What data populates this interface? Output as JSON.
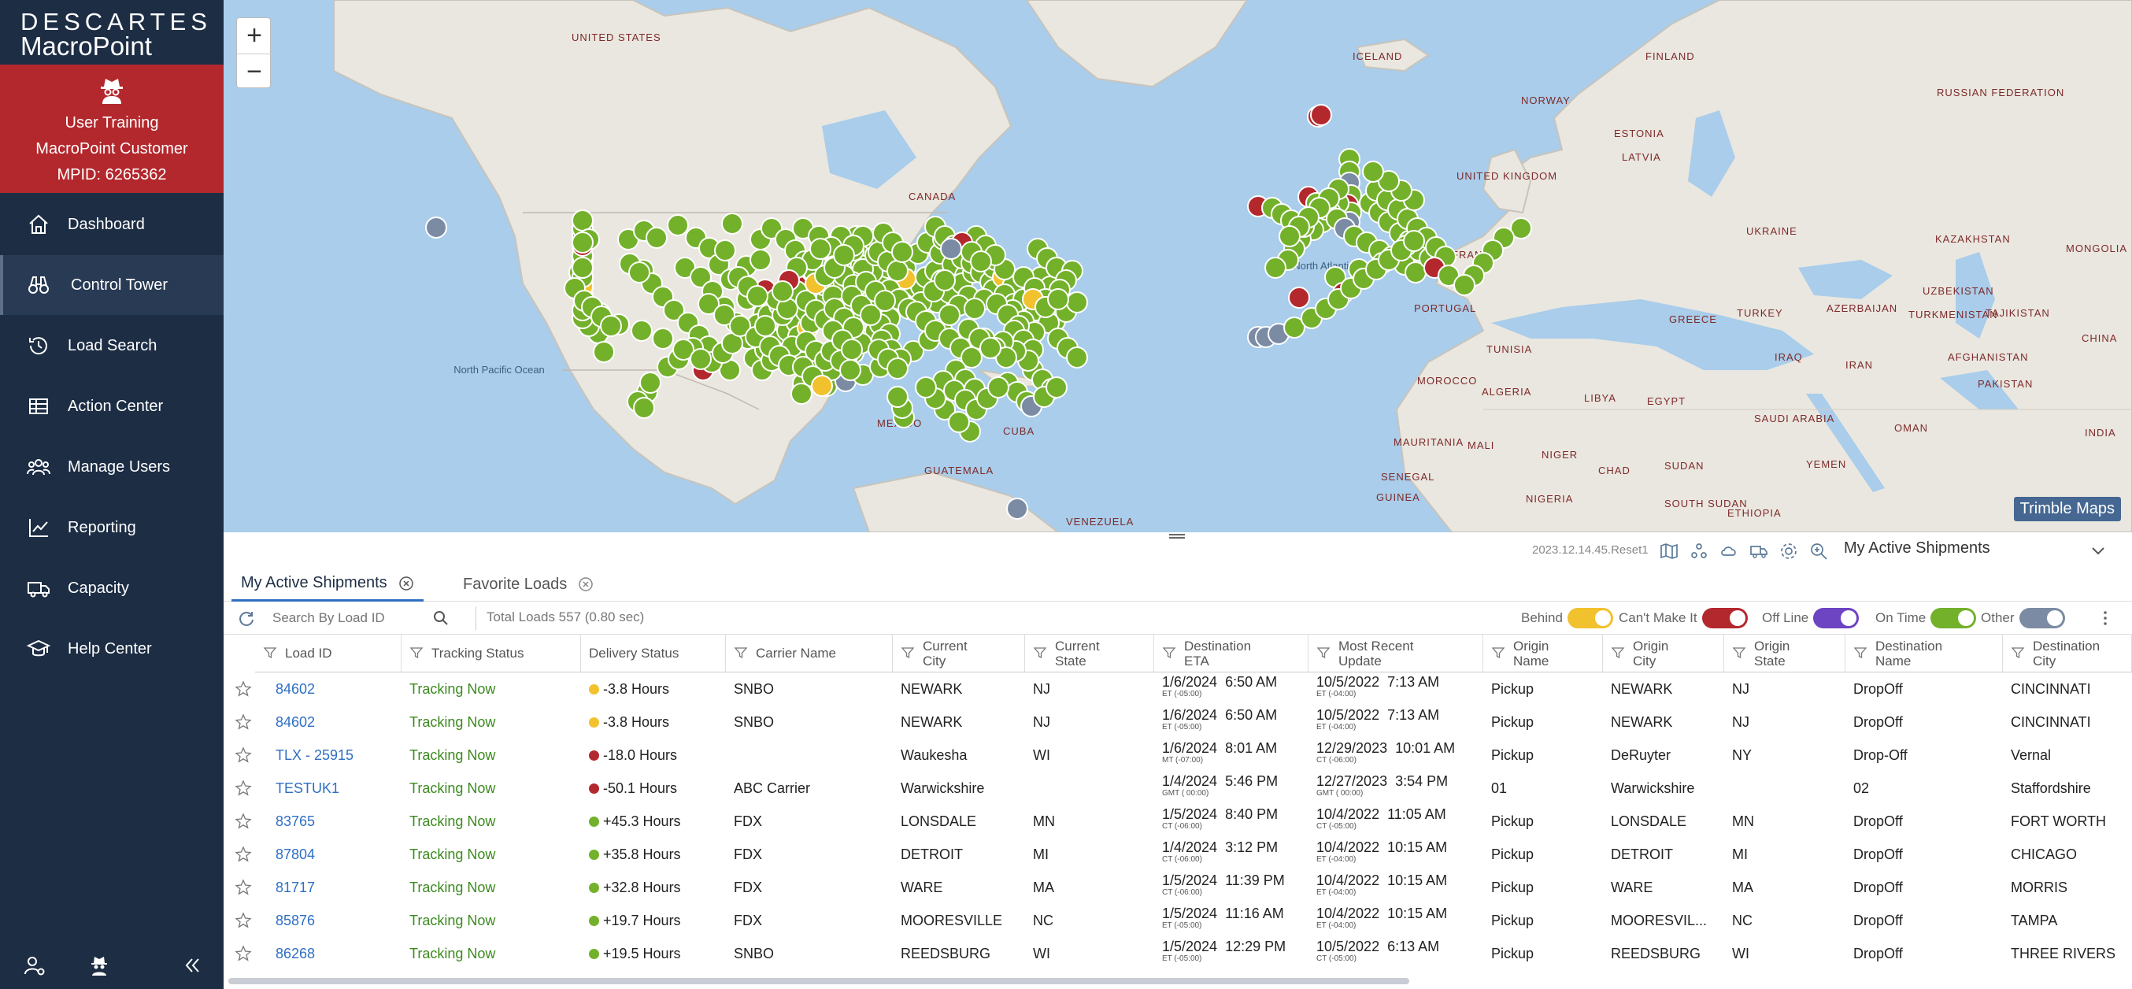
{
  "brand": {
    "name": "DESCARTES",
    "product": "MacroPoint"
  },
  "user": {
    "name": "User Training",
    "company": "MacroPoint Customer",
    "mpid": "MPID: 6265362"
  },
  "nav": [
    {
      "label": "Dashboard",
      "icon": "home-icon"
    },
    {
      "label": "Control Tower",
      "icon": "binoculars-icon",
      "active": true
    },
    {
      "label": "Load Search",
      "icon": "history-icon"
    },
    {
      "label": "Action Center",
      "icon": "table-icon"
    },
    {
      "label": "Manage Users",
      "icon": "users-icon"
    },
    {
      "label": "Reporting",
      "icon": "chart-line-icon"
    },
    {
      "label": "Capacity",
      "icon": "truck-icon"
    },
    {
      "label": "Help Center",
      "icon": "graduation-cap-icon"
    }
  ],
  "map": {
    "labels": {
      "united_states": "UNITED STATES",
      "canada": "CANADA",
      "mexico": "MEXICO",
      "cuba": "CUBA",
      "guatemala": "GUATEMALA",
      "venezuela": "VENEZUELA",
      "iceland": "ICELAND",
      "norway": "NORWAY",
      "finland": "FINLAND",
      "russian_federation": "RUSSIAN FEDERATION",
      "estonia": "ESTONIA",
      "latvia": "LATVIA",
      "united_kingdom": "UNITED KINGDOM",
      "france": "FRANCE",
      "portugal": "PORTUGAL",
      "kazakhstan": "KAZAKHSTAN",
      "mongolia": "MONGOLIA",
      "uzbekistan": "UZBEKISTAN",
      "turkmenistan": "TURKMENISTAN",
      "tajikistan": "TAJIKISTAN",
      "azerbaijan": "AZERBAIJAN",
      "turkey": "TURKEY",
      "greece": "GREECE",
      "tunisia": "TUNISIA",
      "morocco": "MOROCCO",
      "algeria": "ALGERIA",
      "libya": "LIBYA",
      "egypt": "EGYPT",
      "iraq": "IRAQ",
      "iran": "IRAN",
      "afghanistan": "AFGHANISTAN",
      "china": "CHINA",
      "saudi_arabia": "SAUDI ARABIA",
      "mauritania": "MAURITANIA",
      "mali": "MALI",
      "niger": "NIGER",
      "chad": "CHAD",
      "sudan": "SUDAN",
      "senegal": "SENEGAL",
      "guinea": "GUINEA",
      "nigeria": "NIGERIA",
      "south_sudan": "SOUTH SUDAN",
      "ethiopia": "ETHIOPIA",
      "oman": "OMAN",
      "yemen": "YEMEN",
      "pakistan": "PAKISTAN",
      "india": "INDIA",
      "ukraine": "UKRAINE"
    },
    "oceans": {
      "north_pacific": "North Pacific Ocean",
      "north_atlantic": "North Atlantic Ocean"
    },
    "attribution": "Trimble Maps",
    "marker_colors": {
      "on_time": "#73b12b",
      "behind": "#f2c12e",
      "cant_make_it": "#b3282d",
      "off_line": "#6d44c2",
      "other": "#7b8ba3"
    }
  },
  "infobar": {
    "version": "2023.12.14.45.Reset1",
    "view": "My Active Shipments"
  },
  "tabs": [
    {
      "label": "My Active Shipments",
      "active": true
    },
    {
      "label": "Favorite Loads",
      "active": false
    }
  ],
  "toolbar": {
    "search_placeholder": "Search By Load ID",
    "total": "Total Loads 557 (0.80 sec)",
    "legend": [
      {
        "label": "Behind",
        "color": "#f2c12e"
      },
      {
        "label": "Can't Make It",
        "color": "#b3282d"
      },
      {
        "label": "Off Line",
        "color": "#6d44c2"
      },
      {
        "label": "On Time",
        "color": "#73b12b"
      },
      {
        "label": "Other",
        "color": "#7b8ba3"
      }
    ]
  },
  "columns": [
    "Load ID",
    "Tracking Status",
    "Delivery Status",
    "Carrier Name",
    "Current City",
    "Current State",
    "Destination ETA",
    "Most Recent Update",
    "Origin Name",
    "Origin City",
    "Origin State",
    "Destination Name",
    "Destination City"
  ],
  "rows": [
    {
      "load_id": "84602",
      "tracking": "Tracking Now",
      "dot": "#f2c12e",
      "delivery": "-3.8 Hours",
      "carrier": "SNBO",
      "city": "NEWARK",
      "state": "NJ",
      "eta": "1/6/2024  6:50 AM",
      "eta_tz": "ET (-05:00)",
      "update": "10/5/2022  7:13 AM",
      "update_tz": "ET (-04:00)",
      "origin_name": "Pickup",
      "origin_city": "NEWARK",
      "origin_state": "NJ",
      "dest_name": "DropOff",
      "dest_city": "CINCINNATI"
    },
    {
      "load_id": "84602",
      "tracking": "Tracking Now",
      "dot": "#f2c12e",
      "delivery": "-3.8 Hours",
      "carrier": "SNBO",
      "city": "NEWARK",
      "state": "NJ",
      "eta": "1/6/2024  6:50 AM",
      "eta_tz": "ET (-05:00)",
      "update": "10/5/2022  7:13 AM",
      "update_tz": "ET (-04:00)",
      "origin_name": "Pickup",
      "origin_city": "NEWARK",
      "origin_state": "NJ",
      "dest_name": "DropOff",
      "dest_city": "CINCINNATI"
    },
    {
      "load_id": "TLX - 25915",
      "tracking": "Tracking Now",
      "dot": "#b3282d",
      "delivery": "-18.0 Hours",
      "carrier": "",
      "city": "Waukesha",
      "state": "WI",
      "eta": "1/6/2024  8:01 AM",
      "eta_tz": "MT (-07:00)",
      "update": "12/29/2023  10:01 AM",
      "update_tz": "CT (-06:00)",
      "origin_name": "Pickup",
      "origin_city": "DeRuyter",
      "origin_state": "NY",
      "dest_name": "Drop-Off",
      "dest_city": "Vernal"
    },
    {
      "load_id": "TESTUK1",
      "tracking": "Tracking Now",
      "dot": "#b3282d",
      "delivery": "-50.1 Hours",
      "carrier": "ABC Carrier",
      "city": "Warwickshire",
      "state": "",
      "eta": "1/4/2024  5:46 PM",
      "eta_tz": "GMT ( 00:00)",
      "update": "12/27/2023  3:54 PM",
      "update_tz": "GMT ( 00:00)",
      "origin_name": "01",
      "origin_city": "Warwickshire",
      "origin_state": "",
      "dest_name": "02",
      "dest_city": "Staffordshire"
    },
    {
      "load_id": "83765",
      "tracking": "Tracking Now",
      "dot": "#73b12b",
      "delivery": "+45.3 Hours",
      "carrier": "FDX",
      "city": "LONSDALE",
      "state": "MN",
      "eta": "1/5/2024  8:40 PM",
      "eta_tz": "CT (-06:00)",
      "update": "10/4/2022  11:05 AM",
      "update_tz": "CT (-05:00)",
      "origin_name": "Pickup",
      "origin_city": "LONSDALE",
      "origin_state": "MN",
      "dest_name": "DropOff",
      "dest_city": "FORT WORTH"
    },
    {
      "load_id": "87804",
      "tracking": "Tracking Now",
      "dot": "#73b12b",
      "delivery": "+35.8 Hours",
      "carrier": "FDX",
      "city": "DETROIT",
      "state": "MI",
      "eta": "1/4/2024  3:12 PM",
      "eta_tz": "CT (-06:00)",
      "update": "10/4/2022  10:15 AM",
      "update_tz": "ET (-04:00)",
      "origin_name": "Pickup",
      "origin_city": "DETROIT",
      "origin_state": "MI",
      "dest_name": "DropOff",
      "dest_city": "CHICAGO"
    },
    {
      "load_id": "81717",
      "tracking": "Tracking Now",
      "dot": "#73b12b",
      "delivery": "+32.8 Hours",
      "carrier": "FDX",
      "city": "WARE",
      "state": "MA",
      "eta": "1/5/2024  11:39 PM",
      "eta_tz": "CT (-06:00)",
      "update": "10/4/2022  10:15 AM",
      "update_tz": "ET (-04:00)",
      "origin_name": "Pickup",
      "origin_city": "WARE",
      "origin_state": "MA",
      "dest_name": "DropOff",
      "dest_city": "MORRIS"
    },
    {
      "load_id": "85876",
      "tracking": "Tracking Now",
      "dot": "#73b12b",
      "delivery": "+19.7 Hours",
      "carrier": "FDX",
      "city": "MOORESVILLE",
      "state": "NC",
      "eta": "1/5/2024  11:16 AM",
      "eta_tz": "ET (-05:00)",
      "update": "10/4/2022  10:15 AM",
      "update_tz": "ET (-04:00)",
      "origin_name": "Pickup",
      "origin_city": "MOORESVIL...",
      "origin_state": "NC",
      "dest_name": "DropOff",
      "dest_city": "TAMPA"
    },
    {
      "load_id": "86268",
      "tracking": "Tracking Now",
      "dot": "#73b12b",
      "delivery": "+19.5 Hours",
      "carrier": "SNBO",
      "city": "REEDSBURG",
      "state": "WI",
      "eta": "1/5/2024  12:29 PM",
      "eta_tz": "ET (-05:00)",
      "update": "10/5/2022  6:13 AM",
      "update_tz": "CT (-05:00)",
      "origin_name": "Pickup",
      "origin_city": "REEDSBURG",
      "origin_state": "WI",
      "dest_name": "DropOff",
      "dest_city": "THREE RIVERS"
    }
  ]
}
